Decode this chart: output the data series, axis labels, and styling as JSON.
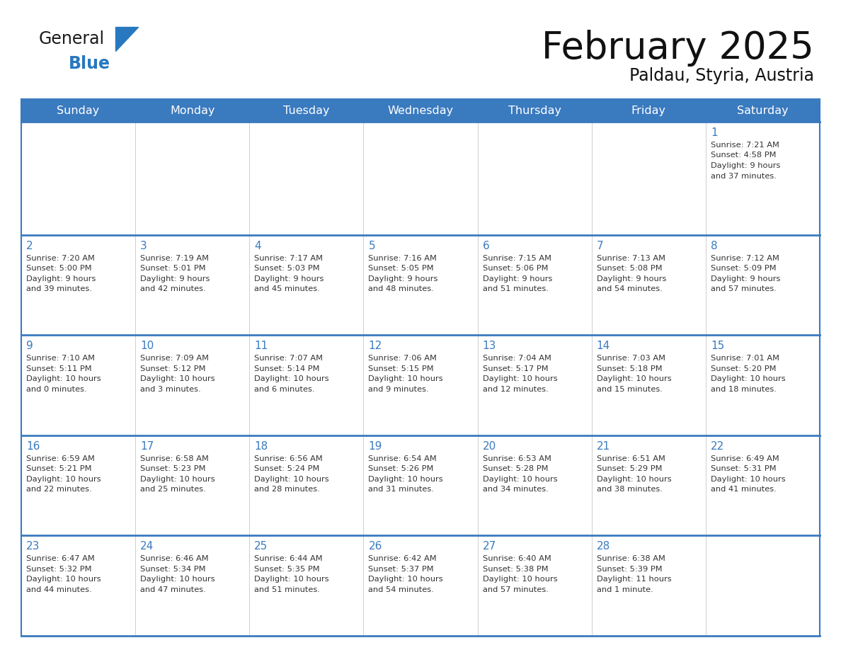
{
  "title": "February 2025",
  "subtitle": "Paldau, Styria, Austria",
  "header_bg": "#3a7abf",
  "header_text_color": "#ffffff",
  "border_color": "#3a7abf",
  "cell_border_color": "#bbbbbb",
  "week_separator_color": "#3a7abf",
  "text_color": "#333333",
  "day_number_color": "#3a7abf",
  "day_names": [
    "Sunday",
    "Monday",
    "Tuesday",
    "Wednesday",
    "Thursday",
    "Friday",
    "Saturday"
  ],
  "days": [
    {
      "day": 1,
      "col": 6,
      "row": 0,
      "sunrise": "7:21 AM",
      "sunset": "4:58 PM",
      "daylight": "9 hours and 37 minutes."
    },
    {
      "day": 2,
      "col": 0,
      "row": 1,
      "sunrise": "7:20 AM",
      "sunset": "5:00 PM",
      "daylight": "9 hours and 39 minutes."
    },
    {
      "day": 3,
      "col": 1,
      "row": 1,
      "sunrise": "7:19 AM",
      "sunset": "5:01 PM",
      "daylight": "9 hours and 42 minutes."
    },
    {
      "day": 4,
      "col": 2,
      "row": 1,
      "sunrise": "7:17 AM",
      "sunset": "5:03 PM",
      "daylight": "9 hours and 45 minutes."
    },
    {
      "day": 5,
      "col": 3,
      "row": 1,
      "sunrise": "7:16 AM",
      "sunset": "5:05 PM",
      "daylight": "9 hours and 48 minutes."
    },
    {
      "day": 6,
      "col": 4,
      "row": 1,
      "sunrise": "7:15 AM",
      "sunset": "5:06 PM",
      "daylight": "9 hours and 51 minutes."
    },
    {
      "day": 7,
      "col": 5,
      "row": 1,
      "sunrise": "7:13 AM",
      "sunset": "5:08 PM",
      "daylight": "9 hours and 54 minutes."
    },
    {
      "day": 8,
      "col": 6,
      "row": 1,
      "sunrise": "7:12 AM",
      "sunset": "5:09 PM",
      "daylight": "9 hours and 57 minutes."
    },
    {
      "day": 9,
      "col": 0,
      "row": 2,
      "sunrise": "7:10 AM",
      "sunset": "5:11 PM",
      "daylight": "10 hours and 0 minutes."
    },
    {
      "day": 10,
      "col": 1,
      "row": 2,
      "sunrise": "7:09 AM",
      "sunset": "5:12 PM",
      "daylight": "10 hours and 3 minutes."
    },
    {
      "day": 11,
      "col": 2,
      "row": 2,
      "sunrise": "7:07 AM",
      "sunset": "5:14 PM",
      "daylight": "10 hours and 6 minutes."
    },
    {
      "day": 12,
      "col": 3,
      "row": 2,
      "sunrise": "7:06 AM",
      "sunset": "5:15 PM",
      "daylight": "10 hours and 9 minutes."
    },
    {
      "day": 13,
      "col": 4,
      "row": 2,
      "sunrise": "7:04 AM",
      "sunset": "5:17 PM",
      "daylight": "10 hours and 12 minutes."
    },
    {
      "day": 14,
      "col": 5,
      "row": 2,
      "sunrise": "7:03 AM",
      "sunset": "5:18 PM",
      "daylight": "10 hours and 15 minutes."
    },
    {
      "day": 15,
      "col": 6,
      "row": 2,
      "sunrise": "7:01 AM",
      "sunset": "5:20 PM",
      "daylight": "10 hours and 18 minutes."
    },
    {
      "day": 16,
      "col": 0,
      "row": 3,
      "sunrise": "6:59 AM",
      "sunset": "5:21 PM",
      "daylight": "10 hours and 22 minutes."
    },
    {
      "day": 17,
      "col": 1,
      "row": 3,
      "sunrise": "6:58 AM",
      "sunset": "5:23 PM",
      "daylight": "10 hours and 25 minutes."
    },
    {
      "day": 18,
      "col": 2,
      "row": 3,
      "sunrise": "6:56 AM",
      "sunset": "5:24 PM",
      "daylight": "10 hours and 28 minutes."
    },
    {
      "day": 19,
      "col": 3,
      "row": 3,
      "sunrise": "6:54 AM",
      "sunset": "5:26 PM",
      "daylight": "10 hours and 31 minutes."
    },
    {
      "day": 20,
      "col": 4,
      "row": 3,
      "sunrise": "6:53 AM",
      "sunset": "5:28 PM",
      "daylight": "10 hours and 34 minutes."
    },
    {
      "day": 21,
      "col": 5,
      "row": 3,
      "sunrise": "6:51 AM",
      "sunset": "5:29 PM",
      "daylight": "10 hours and 38 minutes."
    },
    {
      "day": 22,
      "col": 6,
      "row": 3,
      "sunrise": "6:49 AM",
      "sunset": "5:31 PM",
      "daylight": "10 hours and 41 minutes."
    },
    {
      "day": 23,
      "col": 0,
      "row": 4,
      "sunrise": "6:47 AM",
      "sunset": "5:32 PM",
      "daylight": "10 hours and 44 minutes."
    },
    {
      "day": 24,
      "col": 1,
      "row": 4,
      "sunrise": "6:46 AM",
      "sunset": "5:34 PM",
      "daylight": "10 hours and 47 minutes."
    },
    {
      "day": 25,
      "col": 2,
      "row": 4,
      "sunrise": "6:44 AM",
      "sunset": "5:35 PM",
      "daylight": "10 hours and 51 minutes."
    },
    {
      "day": 26,
      "col": 3,
      "row": 4,
      "sunrise": "6:42 AM",
      "sunset": "5:37 PM",
      "daylight": "10 hours and 54 minutes."
    },
    {
      "day": 27,
      "col": 4,
      "row": 4,
      "sunrise": "6:40 AM",
      "sunset": "5:38 PM",
      "daylight": "10 hours and 57 minutes."
    },
    {
      "day": 28,
      "col": 5,
      "row": 4,
      "sunrise": "6:38 AM",
      "sunset": "5:39 PM",
      "daylight": "11 hours and 1 minute."
    }
  ],
  "num_rows": 5,
  "num_cols": 7,
  "logo_text1": "General",
  "logo_text2": "Blue",
  "logo_color1": "#1a1a1a",
  "logo_color2": "#2878c0",
  "logo_triangle_color": "#2878c0",
  "title_color": "#111111",
  "subtitle_color": "#111111"
}
